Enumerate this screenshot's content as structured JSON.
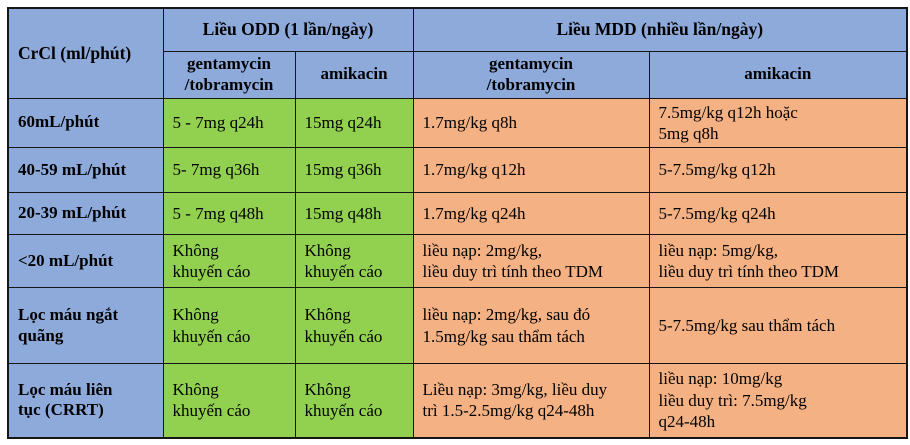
{
  "colors": {
    "header_blue": "#8EAADB",
    "odd_green": "#92D050",
    "mdd_orange": "#F4B183",
    "border_black": "#161616",
    "text": "#000000"
  },
  "table": {
    "corner_header": "CrCl (ml/phút)",
    "group_headers": [
      "Liều ODD (1 lần/ngày)",
      "Liều MDD (nhiều lần/ngày)"
    ],
    "sub_headers": [
      "gentamycin\n/tobramycin",
      "amikacin",
      "gentamycin\n/tobramycin",
      "amikacin"
    ],
    "rows": [
      {
        "label": "60mL/phút",
        "cells": [
          "5 - 7mg q24h",
          "15mg q24h",
          "1.7mg/kg q8h",
          "7.5mg/kg q12h hoặc\n5mg q8h"
        ]
      },
      {
        "label": "40-59 mL/phút",
        "cells": [
          "5- 7mg q36h",
          "15mg q36h",
          "1.7mg/kg q12h",
          "5-7.5mg/kg q12h"
        ]
      },
      {
        "label": "20-39 mL/phút",
        "cells": [
          "5 - 7mg q48h",
          "15mg q48h",
          "1.7mg/kg q24h",
          "5-7.5mg/kg q24h"
        ]
      },
      {
        "label": "<20 mL/phút",
        "cells": [
          "Không\nkhuyến cáo",
          "Không\nkhuyến cáo",
          "liều nạp: 2mg/kg,\nliều duy trì tính theo TDM",
          "liều nạp: 5mg/kg,\nliều duy trì tính theo TDM"
        ]
      },
      {
        "label": "Lọc máu ngắt\nquãng",
        "cells": [
          "Không\nkhuyến cáo",
          "Không\nkhuyến cáo",
          "liều nạp: 2mg/kg, sau đó\n1.5mg/kg sau thẩm tách",
          "5-7.5mg/kg sau thẩm tách"
        ]
      },
      {
        "label": "Lọc máu liên\ntục (CRRT)",
        "cells": [
          "Không\nkhuyến cáo",
          "Không\nkhuyến cáo",
          "Liều nạp: 3mg/kg, liều duy\ntrì 1.5-2.5mg/kg q24-48h",
          "liều nạp: 10mg/kg\nliều duy trì: 7.5mg/kg\nq24-48h"
        ]
      }
    ]
  }
}
